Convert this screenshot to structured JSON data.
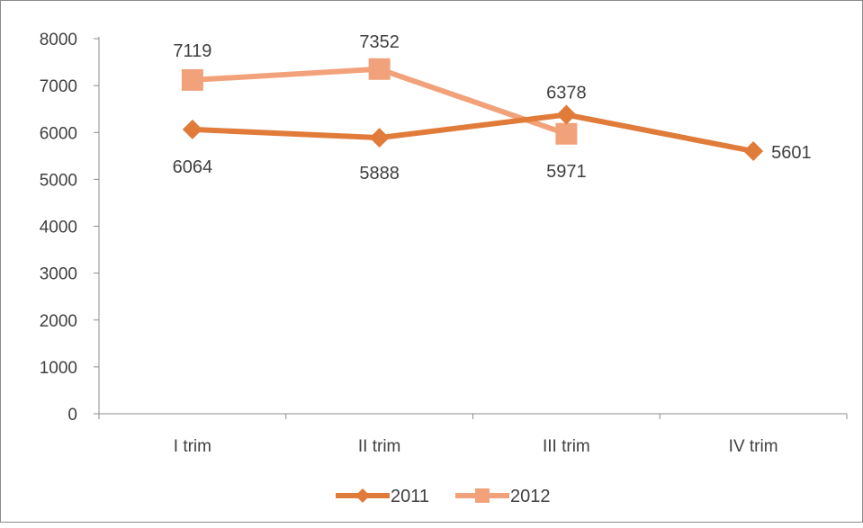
{
  "chart_data": {
    "type": "line",
    "categories": [
      "I trim",
      "II trim",
      "III trim",
      "IV trim"
    ],
    "ylim": [
      0,
      8000
    ],
    "yticks": [
      0,
      1000,
      2000,
      3000,
      4000,
      5000,
      6000,
      7000,
      8000
    ],
    "grid": false,
    "legend_position": "bottom",
    "title": "",
    "xlabel": "",
    "ylabel": "",
    "series": [
      {
        "name": "2011",
        "values": [
          6064,
          5888,
          6378,
          5601
        ],
        "color": "#e07b39",
        "marker": "diamond"
      },
      {
        "name": "2012",
        "values": [
          7119,
          7352,
          5971,
          null
        ],
        "color": "#f2a27a",
        "marker": "square"
      }
    ]
  }
}
